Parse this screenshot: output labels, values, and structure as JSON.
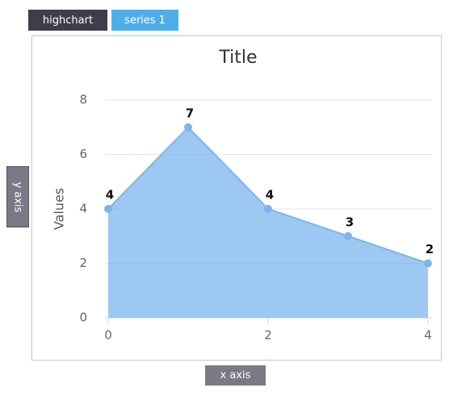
{
  "ui": {
    "tabs": [
      "highchart",
      "series 1"
    ],
    "y_axis_button": "y axis",
    "x_axis_button": "x axis"
  },
  "chart_data": {
    "type": "area",
    "title": "Title",
    "y_label": "Values",
    "x": [
      0,
      1,
      2,
      3,
      4
    ],
    "xlim": [
      0,
      4
    ],
    "xticks": [
      0,
      2,
      4
    ],
    "ylim": [
      0,
      8
    ],
    "yticks": [
      0,
      2,
      4,
      6,
      8
    ],
    "grid": true,
    "series": [
      {
        "name": "series 1",
        "color": "#7cb5ec",
        "values": [
          4,
          7,
          4,
          3,
          2
        ]
      }
    ]
  }
}
